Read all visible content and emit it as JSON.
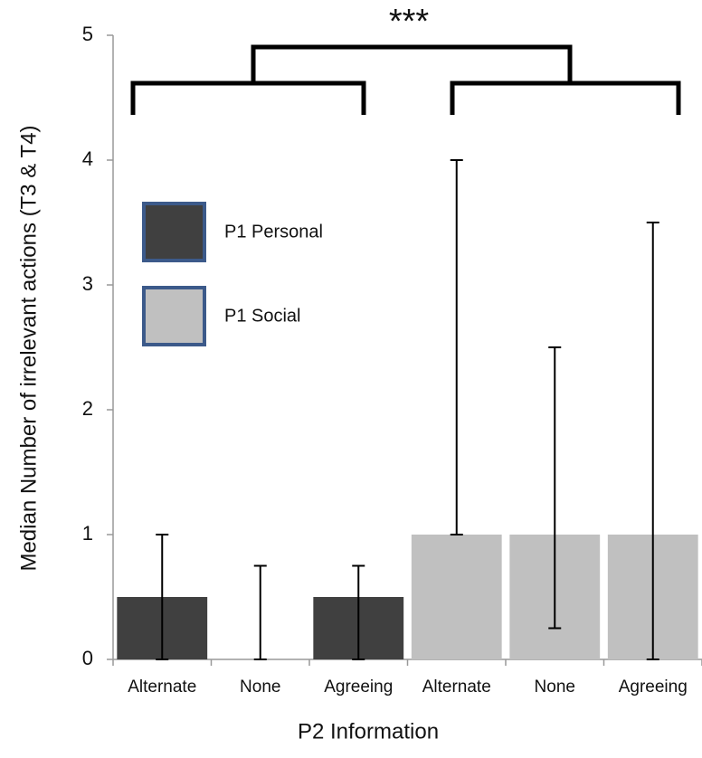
{
  "chart_data": {
    "type": "bar",
    "annotation": "***",
    "xlabel": "P2 Information",
    "ylabel": "Median Number of irrelevant actions (T3 & T4)",
    "categories": [
      "Alternate",
      "None",
      "Agreeing",
      "Alternate",
      "None",
      "Agreeing"
    ],
    "series": [
      {
        "name": "P1 Personal",
        "color": "#404040",
        "values": [
          0.5,
          0,
          0.5,
          null,
          null,
          null
        ],
        "err_low": [
          0,
          0,
          0,
          null,
          null,
          null
        ],
        "err_high": [
          1,
          0.75,
          0.75,
          null,
          null,
          null
        ]
      },
      {
        "name": "P1 Social",
        "color": "#c0c0c0",
        "values": [
          null,
          null,
          null,
          1,
          1,
          1
        ],
        "err_low": [
          null,
          null,
          null,
          1,
          0.25,
          0
        ],
        "err_high": [
          null,
          null,
          null,
          4,
          2.5,
          3.5
        ]
      }
    ],
    "ylim": [
      0,
      5
    ],
    "yticks": [
      0,
      1,
      2,
      3,
      4,
      5
    ]
  }
}
